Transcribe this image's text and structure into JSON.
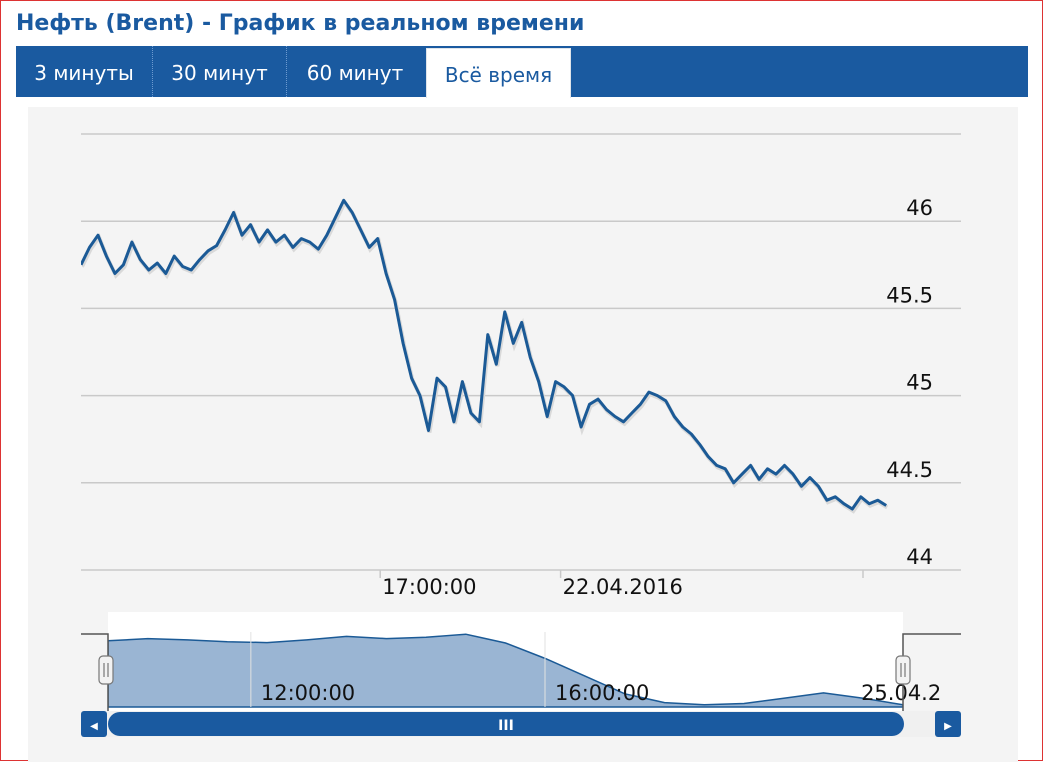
{
  "page": {
    "title": "Нефть (Brent) - График в реальном времени"
  },
  "tabs": [
    {
      "label": "3 минуты",
      "active": false
    },
    {
      "label": "30 минут",
      "active": false
    },
    {
      "label": "60 минут",
      "active": false
    },
    {
      "label": "Всё время",
      "active": true
    }
  ],
  "colors": {
    "brand": "#1a5aa0",
    "line": "#1b5a96",
    "navigator_fill": "#9ab5d3",
    "scrollbar": "#1a5aa0"
  },
  "chart_data": {
    "type": "line",
    "title": "",
    "xlabel": "",
    "ylabel": "",
    "ylim": [
      44,
      46.5
    ],
    "y_ticks": [
      "46",
      "45.5",
      "45",
      "44.5",
      "44"
    ],
    "y_tick_values": [
      46,
      45.5,
      45,
      44.5,
      44
    ],
    "x_ticks": [
      {
        "label": "17:00:00",
        "t": 0.34
      },
      {
        "label": "22.04.2016",
        "t": 0.545
      }
    ],
    "series": [
      {
        "values": [
          45.75,
          45.85,
          45.92,
          45.8,
          45.7,
          45.75,
          45.88,
          45.78,
          45.72,
          45.76,
          45.7,
          45.8,
          45.74,
          45.72,
          45.78,
          45.83,
          45.86,
          45.95,
          46.05,
          45.92,
          45.98,
          45.88,
          45.95,
          45.88,
          45.92,
          45.85,
          45.9,
          45.88,
          45.84,
          45.92,
          46.02,
          46.12,
          46.05,
          45.95,
          45.85,
          45.9,
          45.7,
          45.55,
          45.3,
          45.1,
          45.0,
          44.8,
          45.1,
          45.05,
          44.85,
          45.08,
          44.9,
          44.85,
          45.35,
          45.18,
          45.48,
          45.3,
          45.42,
          45.22,
          45.08,
          44.88,
          45.08,
          45.05,
          45.0,
          44.82,
          44.95,
          44.98,
          44.92,
          44.88,
          44.85,
          44.9,
          44.95,
          45.02,
          45.0,
          44.97,
          44.88,
          44.82,
          44.78,
          44.72,
          44.65,
          44.6,
          44.58,
          44.5,
          44.55,
          44.6,
          44.52,
          44.58,
          44.55,
          44.6,
          44.55,
          44.48,
          44.53,
          44.48,
          44.4,
          44.42,
          44.38,
          44.35,
          44.42,
          44.38,
          44.4,
          44.37
        ],
        "visible_until": 0.915
      }
    ],
    "navigator": {
      "values": [
        45.8,
        45.85,
        45.82,
        45.78,
        45.76,
        45.82,
        45.9,
        45.85,
        45.88,
        45.95,
        45.75,
        45.4,
        45.0,
        44.6,
        44.4,
        44.35,
        44.38,
        44.5,
        44.62,
        44.5,
        44.35
      ],
      "x_ticks": [
        {
          "label": "12:00:00",
          "t": 0.23
        },
        {
          "label": "16:00:00",
          "t": 0.6
        },
        {
          "label": "25.04.2",
          "t": 0.985
        }
      ]
    }
  },
  "scrollbar": {
    "left_arrow": "◀",
    "right_arrow": "▶",
    "grip": "III"
  }
}
